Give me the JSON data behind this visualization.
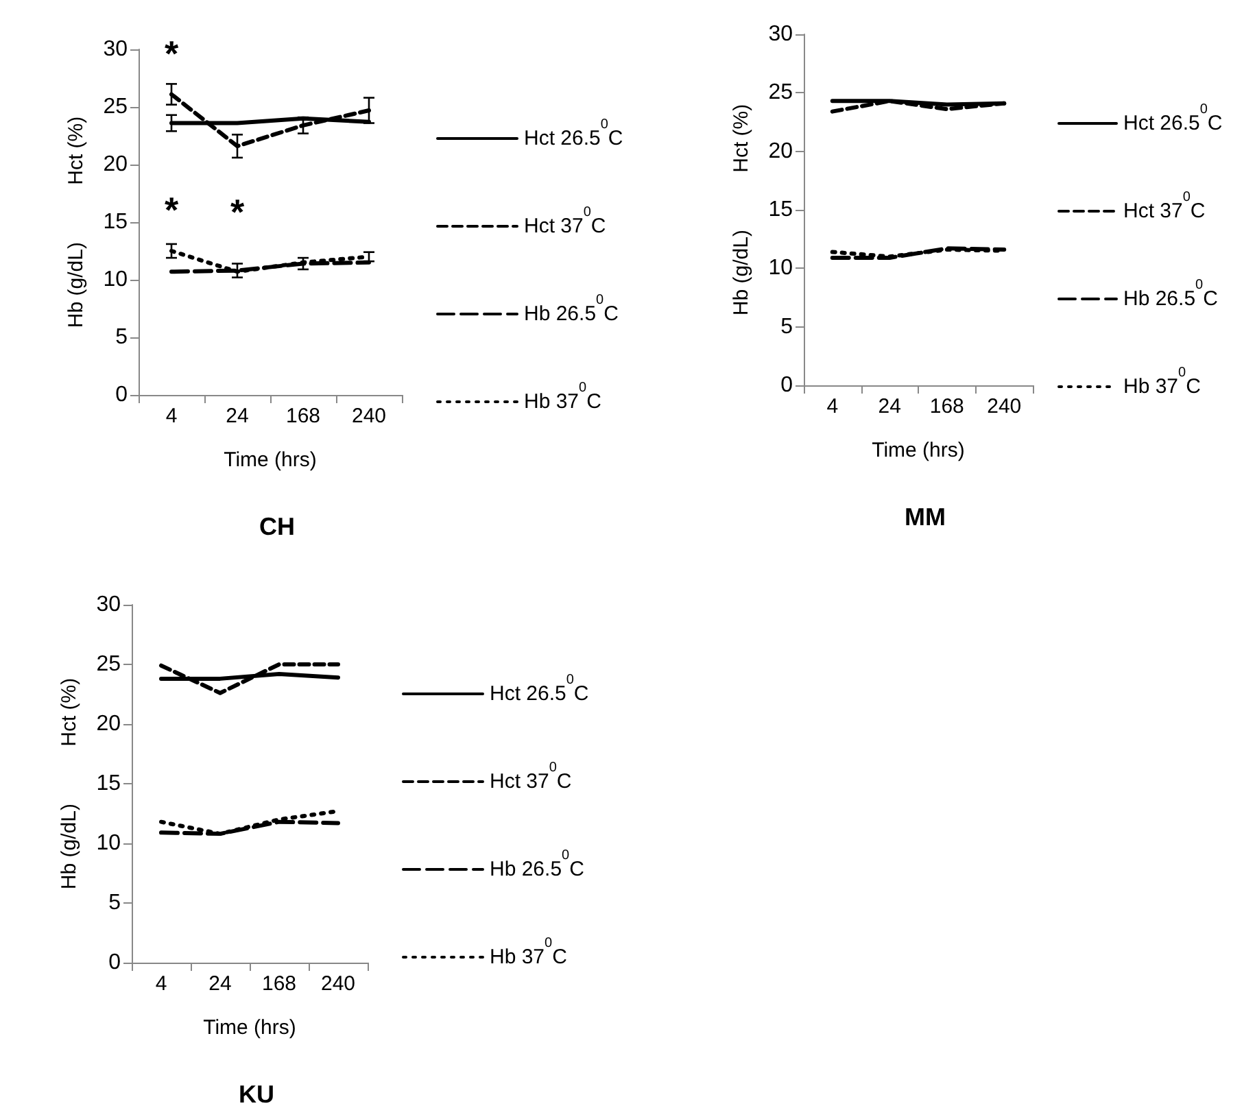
{
  "chart_data": [
    {
      "type": "line",
      "title": "CH",
      "xlabel": "Time (hrs)",
      "ylabel": "Hb (g/dL)          Hct (%)",
      "categories": [
        "4",
        "24",
        "168",
        "240"
      ],
      "ylim": [
        0,
        30
      ],
      "yticks": [
        0,
        5,
        10,
        15,
        20,
        25,
        30
      ],
      "grid": false,
      "legend": "right",
      "marker": "none",
      "series": [
        {
          "name": "Hct 26.5$^{0}$C",
          "color": "#000000",
          "line_style": "solid",
          "values": [
            23.6,
            23.6,
            24.0,
            23.7
          ],
          "errors": [
            0.7,
            null,
            null,
            null
          ]
        },
        {
          "name": "Hct 37$^{0}$C",
          "color": "#000000",
          "line_style": "dashed",
          "values": [
            26.1,
            21.6,
            23.4,
            24.7
          ],
          "errors": [
            0.9,
            1.0,
            0.7,
            1.1
          ]
        },
        {
          "name": "Hb 26.5$^{0}$C",
          "color": "#000000",
          "line_style": "dashed",
          "values": [
            10.7,
            10.8,
            11.4,
            11.5
          ],
          "errors": [
            null,
            0.6,
            0.5,
            null
          ]
        },
        {
          "name": "Hb 37$^{0}$C",
          "color": "#000000",
          "line_style": "dotted",
          "values": [
            12.5,
            10.7,
            11.5,
            12.0
          ],
          "errors": [
            0.6,
            null,
            null,
            0.4
          ]
        }
      ],
      "annotations": [
        {
          "text": "*",
          "x": "4",
          "y": 26.1
        },
        {
          "text": "*",
          "x": "24",
          "y": 21.6
        },
        {
          "text": "*",
          "x": "4",
          "y": 12.5
        }
      ]
    },
    {
      "type": "line",
      "title": "MM",
      "xlabel": "Time (hrs)",
      "ylabel": "Hb (g/dL)          Hct (%)",
      "categories": [
        "4",
        "24",
        "168",
        "240"
      ],
      "ylim": [
        0,
        30
      ],
      "yticks": [
        0,
        5,
        10,
        15,
        20,
        25,
        30
      ],
      "grid": false,
      "legend": "right",
      "marker": "none",
      "series": [
        {
          "name": "Hct 26.5$^{0}$C",
          "color": "#000000",
          "line_style": "solid",
          "values": [
            24.3,
            24.3,
            24.0,
            24.1
          ]
        },
        {
          "name": "Hct 37$^{0}$C",
          "color": "#000000",
          "line_style": "dashed",
          "values": [
            23.4,
            24.3,
            23.6,
            24.1
          ]
        },
        {
          "name": "Hb 26.5$^{0}$C",
          "color": "#000000",
          "line_style": "dashed",
          "values": [
            10.9,
            10.9,
            11.7,
            11.6
          ]
        },
        {
          "name": "Hb 37$^{0}$C",
          "color": "#000000",
          "line_style": "dotted",
          "values": [
            11.4,
            11.0,
            11.6,
            11.5
          ]
        }
      ]
    },
    {
      "type": "line",
      "title": "KU",
      "xlabel": "Time (hrs)",
      "ylabel": "Hb (g/dL)          Hct (%)",
      "categories": [
        "4",
        "24",
        "168",
        "240"
      ],
      "ylim": [
        0,
        30
      ],
      "yticks": [
        0,
        5,
        10,
        15,
        20,
        25,
        30
      ],
      "grid": false,
      "legend": "right",
      "marker": "none",
      "series": [
        {
          "name": "Hct 26.5$^{0}$C",
          "color": "#000000",
          "line_style": "solid",
          "values": [
            23.8,
            23.8,
            24.2,
            23.9
          ]
        },
        {
          "name": "Hct 37$^{0}$C",
          "color": "#000000",
          "line_style": "dashed",
          "values": [
            24.9,
            22.6,
            25.0,
            25.0
          ]
        },
        {
          "name": "Hb 26.5$^{0}$C",
          "color": "#000000",
          "line_style": "dashed",
          "values": [
            10.9,
            10.8,
            11.8,
            11.7
          ]
        },
        {
          "name": "Hb 37$^{0}$C",
          "color": "#000000",
          "line_style": "dotted",
          "values": [
            11.8,
            10.8,
            12.0,
            12.7
          ]
        }
      ]
    }
  ]
}
